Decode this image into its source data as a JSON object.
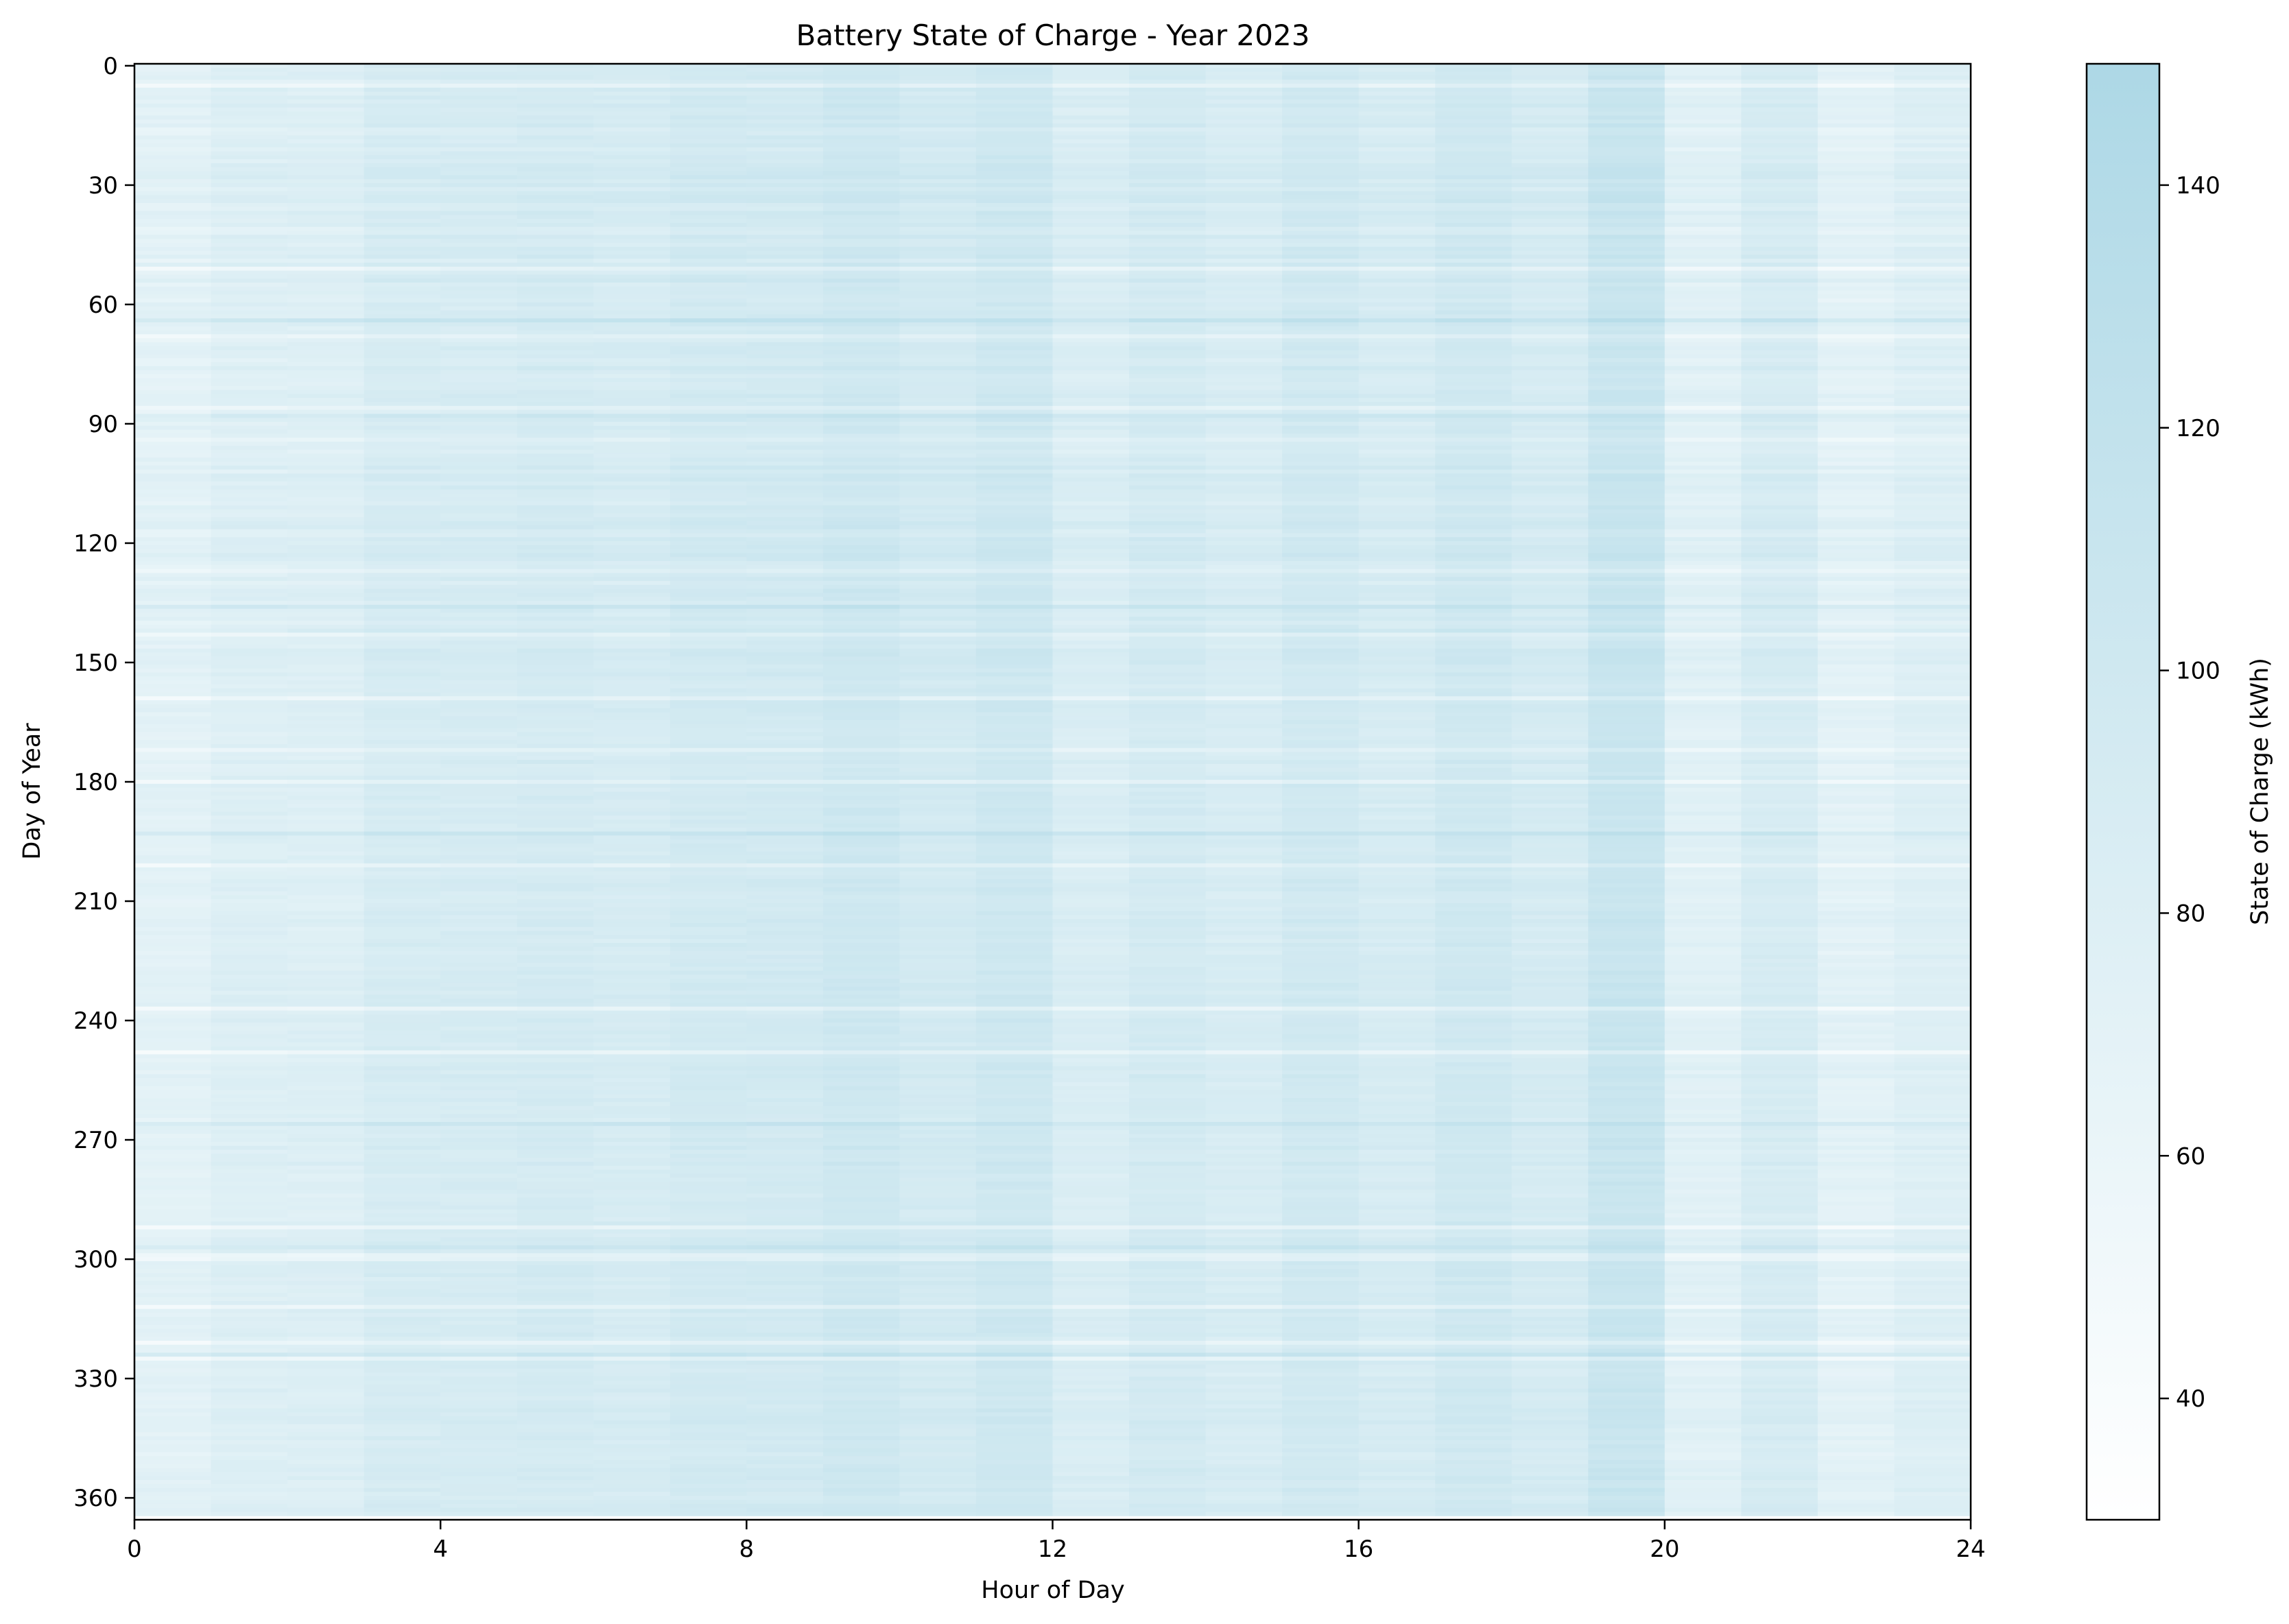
{
  "chart_data": {
    "type": "heatmap",
    "title": "Battery State of Charge - Year 2023",
    "xlabel": "Hour of Day",
    "ylabel": "Day of Year",
    "xlim": [
      0,
      24
    ],
    "ylim": [
      366,
      0
    ],
    "x_ticks": [
      0,
      4,
      8,
      12,
      16,
      20,
      24
    ],
    "y_ticks": [
      0,
      30,
      60,
      90,
      120,
      150,
      180,
      210,
      240,
      270,
      300,
      330,
      360
    ],
    "hours": 24,
    "days": 365,
    "hourly_mean_soc_kwh": [
      72,
      80,
      80,
      90,
      90,
      93,
      90,
      96,
      96,
      102,
      95,
      102,
      85,
      94,
      88,
      98,
      90,
      100,
      92,
      110,
      75,
      90,
      72,
      80
    ],
    "colorbar": {
      "label": "State of Charge (kWh)",
      "min": 30,
      "max": 150,
      "ticks": [
        40,
        60,
        80,
        100,
        120,
        140
      ],
      "color_low": "#ffffff",
      "color_high": "#add8e6"
    },
    "grid": false
  }
}
